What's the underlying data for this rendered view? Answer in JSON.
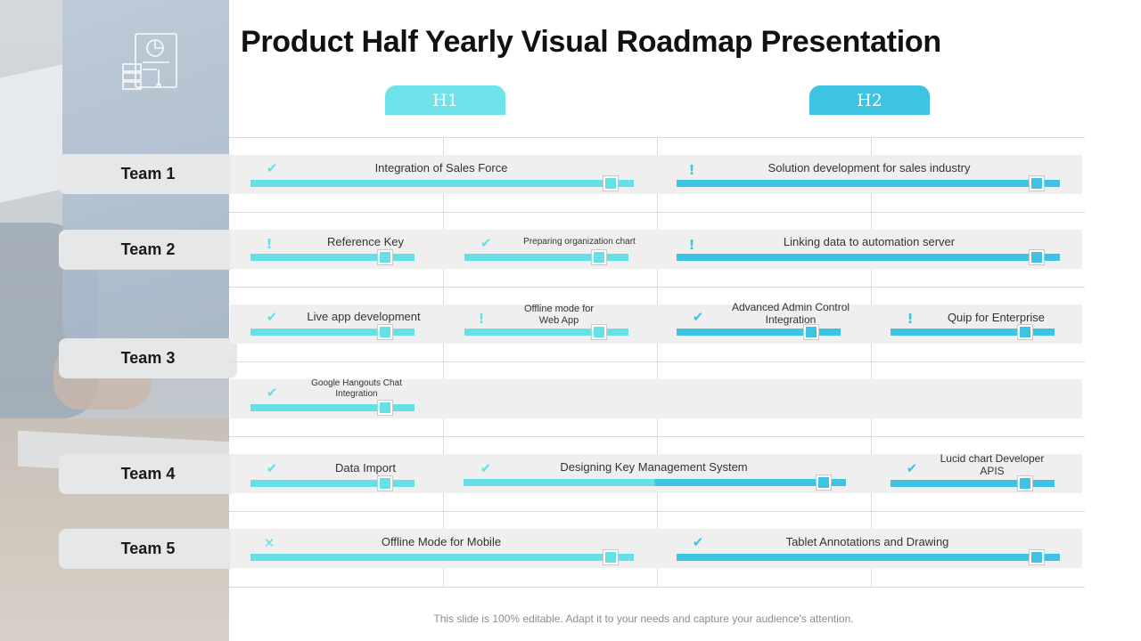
{
  "title": "Product Half Yearly Visual Roadmap Presentation",
  "halves": {
    "h1": "H1",
    "h2": "H2"
  },
  "teams": [
    "Team 1",
    "Team 2",
    "Team 3",
    "Team 4",
    "Team 5"
  ],
  "tasks": [
    {
      "id": "t1",
      "team": "Team 1",
      "label": "Integration of Sales Force",
      "status": "done",
      "status_icon": "check-icon",
      "half": "H1"
    },
    {
      "id": "t2",
      "team": "Team 1",
      "label": "Solution development  for sales industry",
      "status": "attention",
      "status_icon": "exclamation-icon",
      "half": "H2"
    },
    {
      "id": "t3",
      "team": "Team 2",
      "label": "Reference  Key",
      "status": "attention",
      "status_icon": "exclamation-icon",
      "half": "H1"
    },
    {
      "id": "t4",
      "team": "Team 2",
      "label": "Preparing organization chart",
      "status": "done",
      "status_icon": "check-icon",
      "half": "H1"
    },
    {
      "id": "t5",
      "team": "Team 2",
      "label": "Linking data to automation server",
      "status": "attention",
      "status_icon": "exclamation-icon",
      "half": "H2"
    },
    {
      "id": "t6",
      "team": "Team 3",
      "label": "Live  app development",
      "status": "done",
      "status_icon": "check-icon",
      "half": "H1"
    },
    {
      "id": "t7",
      "team": "Team 3",
      "label": "Offline mode for\nWeb App",
      "status": "attention",
      "status_icon": "exclamation-icon",
      "half": "H1"
    },
    {
      "id": "t8",
      "team": "Team 3",
      "label": "Advanced Admin Control\nIntegration",
      "status": "done",
      "status_icon": "check-icon",
      "half": "H2"
    },
    {
      "id": "t9",
      "team": "Team 3",
      "label": "Quip for Enterprise",
      "status": "attention",
      "status_icon": "exclamation-icon",
      "half": "H2"
    },
    {
      "id": "t10",
      "team": "Team 3",
      "label": "Google Hangouts Chat\nIntegration",
      "status": "done",
      "status_icon": "check-icon",
      "half": "H1"
    },
    {
      "id": "t11",
      "team": "Team 4",
      "label": "Data Import",
      "status": "done",
      "status_icon": "check-icon",
      "half": "H1"
    },
    {
      "id": "t12",
      "team": "Team 4",
      "label": "Designing  Key Management  System",
      "status": "done",
      "status_icon": "check-icon",
      "half": "H1-H2"
    },
    {
      "id": "t13",
      "team": "Team 4",
      "label": "Lucid chart Developer\nAPIS",
      "status": "done",
      "status_icon": "check-icon",
      "half": "H2"
    },
    {
      "id": "t14",
      "team": "Team 5",
      "label": "Offline Mode for Mobile",
      "status": "cancelled",
      "status_icon": "cross-icon",
      "half": "H1"
    },
    {
      "id": "t15",
      "team": "Team 5",
      "label": "Tablet  Annotations  and Drawing",
      "status": "done",
      "status_icon": "check-icon",
      "half": "H2"
    }
  ],
  "footer": "This slide is 100% editable. Adapt it to your needs and capture your audience's attention.",
  "colors": {
    "h1_accent": "#66dfe6",
    "h2_accent": "#3ec3e3",
    "band": "#efefef",
    "team_label_bg": "#e6e7e9"
  }
}
